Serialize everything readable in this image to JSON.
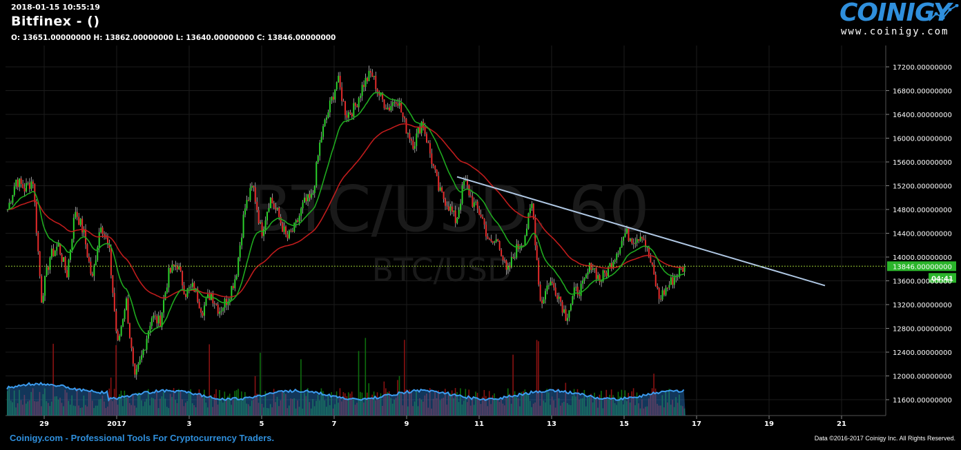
{
  "header": {
    "timestamp": "2018-01-15 10:55:19",
    "title": "Bitfinex -  ()",
    "ohlc": "O: 13651.00000000 H: 13862.00000000 L: 13640.00000000 C: 13846.00000000"
  },
  "logo": {
    "word": "COINIGY",
    "url": "www.coinigy.com"
  },
  "watermark": {
    "main": "BTC/USD, 60",
    "sub": "BTC/USD"
  },
  "footer": {
    "left": "Coinigy.com - Professional Tools For Cryptocurrency Traders.",
    "right": "Data ©2016-2017 Coinigy Inc. All Rights Reserved."
  },
  "colors": {
    "up": "#2bd12b",
    "down": "#e62b2b",
    "ema_fast": "#1faa1f",
    "ema_slow": "#c01c1c",
    "trendline": "#b0c8e4",
    "volume_area": "#2878c8",
    "price_line": "#9acd32",
    "last_price_bg": "#2bb52b",
    "brand": "#2f8fdc"
  },
  "chart_data": {
    "type": "candlestick",
    "yaxis": {
      "ylim": [
        11300,
        17500
      ],
      "ticks": [
        17200,
        16800,
        16400,
        16000,
        15600,
        15200,
        14800,
        14400,
        14000,
        13600,
        13200,
        12800,
        12400,
        12000,
        11600
      ],
      "tick_labels": [
        "17200.00000000",
        "16800.00000000",
        "16400.00000000",
        "16000.00000000",
        "15600.00000000",
        "15200.00000000",
        "14800.00000000",
        "14400.00000000",
        "14000.00000000",
        "13600.00000000",
        "13200.00000000",
        "12800.00000000",
        "12400.00000000",
        "12000.00000000",
        "11600.00000000"
      ]
    },
    "xaxis": {
      "tick_labels": [
        "29",
        "2017",
        "3",
        "5",
        "7",
        "9",
        "11",
        "13",
        "15",
        "17",
        "19",
        "21"
      ]
    },
    "last_price": {
      "value": 13846,
      "label": "13846.00000000",
      "countdown": "04:41"
    },
    "price_path": [
      [
        0,
        14800
      ],
      [
        1,
        15300
      ],
      [
        2,
        15150
      ],
      [
        3,
        15300
      ],
      [
        4,
        13300
      ],
      [
        5,
        14000
      ],
      [
        6,
        14200
      ],
      [
        7,
        13700
      ],
      [
        8,
        14800
      ],
      [
        9,
        14400
      ],
      [
        10,
        13600
      ],
      [
        11,
        14600
      ],
      [
        12,
        14100
      ],
      [
        13,
        12500
      ],
      [
        14,
        13300
      ],
      [
        15,
        11900
      ],
      [
        16,
        12400
      ],
      [
        17,
        13000
      ],
      [
        18,
        12900
      ],
      [
        19,
        13700
      ],
      [
        20,
        13900
      ],
      [
        21,
        13400
      ],
      [
        22,
        13500
      ],
      [
        23,
        13100
      ],
      [
        24,
        13400
      ],
      [
        25,
        13100
      ],
      [
        26,
        13300
      ],
      [
        27,
        13700
      ],
      [
        28,
        14800
      ],
      [
        29,
        15200
      ],
      [
        30,
        14400
      ],
      [
        31,
        15000
      ],
      [
        32,
        14700
      ],
      [
        33,
        14300
      ],
      [
        34,
        14500
      ],
      [
        35,
        14900
      ],
      [
        36,
        15000
      ],
      [
        37,
        16000
      ],
      [
        38,
        16500
      ],
      [
        39,
        17000
      ],
      [
        40,
        16400
      ],
      [
        41,
        16500
      ],
      [
        42,
        16900
      ],
      [
        43,
        17100
      ],
      [
        44,
        16700
      ],
      [
        45,
        16500
      ],
      [
        46,
        16700
      ],
      [
        47,
        16200
      ],
      [
        48,
        15900
      ],
      [
        49,
        16300
      ],
      [
        50,
        15700
      ],
      [
        51,
        15100
      ],
      [
        52,
        14900
      ],
      [
        53,
        14600
      ],
      [
        54,
        15300
      ],
      [
        55,
        14900
      ],
      [
        56,
        14700
      ],
      [
        57,
        14200
      ],
      [
        58,
        14300
      ],
      [
        59,
        13700
      ],
      [
        60,
        14100
      ],
      [
        61,
        14300
      ],
      [
        62,
        14900
      ],
      [
        63,
        13200
      ],
      [
        64,
        13600
      ],
      [
        65,
        13400
      ],
      [
        66,
        13000
      ],
      [
        67,
        13400
      ],
      [
        68,
        13500
      ],
      [
        69,
        13900
      ],
      [
        70,
        13600
      ],
      [
        71,
        13800
      ],
      [
        72,
        14100
      ],
      [
        73,
        14400
      ],
      [
        74,
        14300
      ],
      [
        75,
        14400
      ],
      [
        76,
        13900
      ],
      [
        77,
        13300
      ],
      [
        78,
        13500
      ],
      [
        79,
        13700
      ],
      [
        80,
        13846
      ]
    ]
  }
}
